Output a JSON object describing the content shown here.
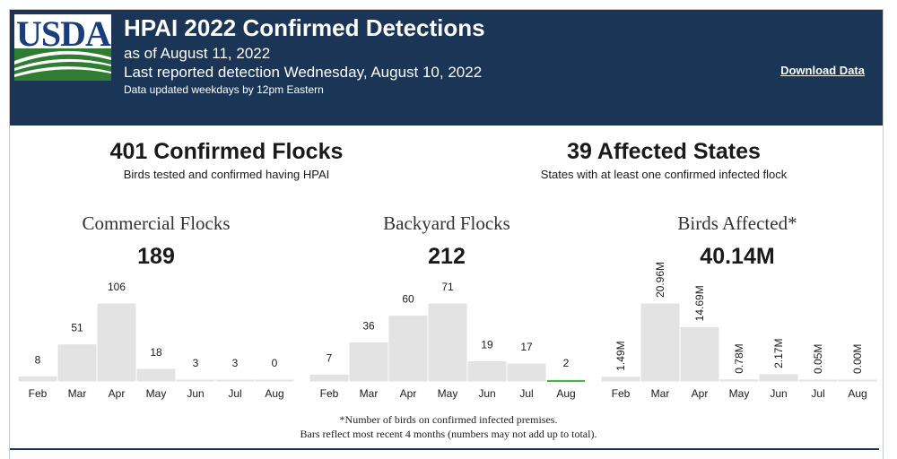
{
  "header": {
    "logo_text": "USDA",
    "title": "HPAI 2022 Confirmed Detections",
    "as_of": "as of August 11, 2022",
    "last_reported": "Last reported detection Wednesday, August 10, 2022",
    "updated_note": "Data updated weekdays by 12pm Eastern",
    "download_label": "Download Data"
  },
  "kpis": {
    "flocks": {
      "headline": "401 Confirmed Flocks",
      "subtitle": "Birds tested and confirmed having HPAI"
    },
    "states": {
      "headline": "39 Affected States",
      "subtitle": "States with at least one confirmed infected flock"
    }
  },
  "colors": {
    "header_bg": "#1b3557",
    "bar": "#e3e3e3",
    "bar_highlight": "#4caf50",
    "text": "#1a1a1a"
  },
  "chart_data": [
    {
      "type": "bar",
      "title": "Commercial Flocks",
      "total": "189",
      "categories": [
        "Feb",
        "Mar",
        "Apr",
        "May",
        "Jun",
        "Jul",
        "Aug"
      ],
      "values": [
        8,
        51,
        106,
        18,
        3,
        3,
        0
      ],
      "labels": [
        "8",
        "51",
        "106",
        "18",
        "3",
        "3",
        "0"
      ],
      "ylim": [
        0,
        106
      ],
      "label_orientation": "horizontal"
    },
    {
      "type": "bar",
      "title": "Backyard Flocks",
      "total": "212",
      "categories": [
        "Feb",
        "Mar",
        "Apr",
        "May",
        "Jun",
        "Jul",
        "Aug"
      ],
      "values": [
        7,
        36,
        60,
        71,
        19,
        17,
        2
      ],
      "labels": [
        "7",
        "36",
        "60",
        "71",
        "19",
        "17",
        "2"
      ],
      "ylim": [
        0,
        71
      ],
      "label_orientation": "horizontal",
      "highlight_last": true
    },
    {
      "type": "bar",
      "title": "Birds Affected*",
      "total": "40.14M",
      "categories": [
        "Feb",
        "Mar",
        "Apr",
        "May",
        "Jun",
        "Jul",
        "Aug"
      ],
      "values": [
        1.49,
        20.96,
        14.69,
        0.78,
        2.17,
        0.05,
        0.0
      ],
      "labels": [
        "1.49M",
        "20.96M",
        "14.69M",
        "0.78M",
        "2.17M",
        "0.05M",
        "0.00M"
      ],
      "ylim": [
        0,
        20.96
      ],
      "label_orientation": "vertical"
    }
  ],
  "footnotes": {
    "line1": "*Number of birds on confirmed infected premises.",
    "line2": "Bars reflect most recent 4 months (numbers may not add up to total)."
  }
}
